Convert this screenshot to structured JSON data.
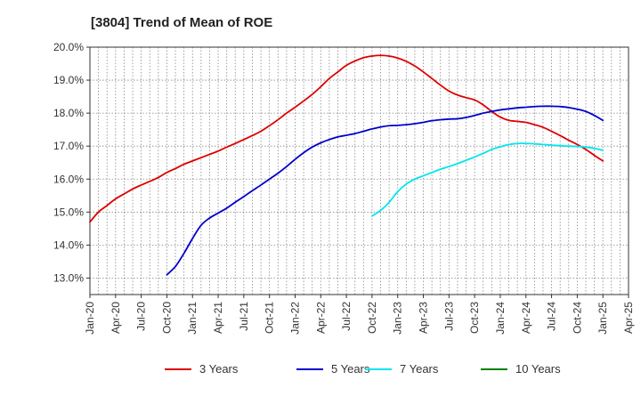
{
  "chart_data": {
    "type": "line",
    "title": "[3804]  Trend of Mean of ROE",
    "xlabel": "",
    "ylabel": "",
    "x_ticks": [
      "Jan-20",
      "Apr-20",
      "Jul-20",
      "Oct-20",
      "Jan-21",
      "Apr-21",
      "Jul-21",
      "Oct-21",
      "Jan-22",
      "Apr-22",
      "Jul-22",
      "Oct-22",
      "Jan-23",
      "Apr-23",
      "Jul-23",
      "Oct-23",
      "Jan-24",
      "Apr-24",
      "Jul-24",
      "Oct-24",
      "Jan-25",
      "Apr-25"
    ],
    "xlim": [
      "Jan-20",
      "Apr-25"
    ],
    "ylim": [
      12.5,
      20.0
    ],
    "y_ticks": [
      13.0,
      14.0,
      15.0,
      16.0,
      17.0,
      18.0,
      19.0,
      20.0
    ],
    "y_tick_labels": [
      "13.0%",
      "14.0%",
      "15.0%",
      "16.0%",
      "17.0%",
      "18.0%",
      "19.0%",
      "20.0%"
    ],
    "grid": true,
    "legend_position": "bottom",
    "series": [
      {
        "name": "3 Years",
        "color": "#dd0000",
        "points": [
          [
            "Jan-20",
            14.7
          ],
          [
            "Feb-20",
            15.0
          ],
          [
            "Mar-20",
            15.2
          ],
          [
            "Apr-20",
            15.4
          ],
          [
            "May-20",
            15.55
          ],
          [
            "Jun-20",
            15.7
          ],
          [
            "Jul-20",
            15.82
          ],
          [
            "Aug-20",
            15.93
          ],
          [
            "Sep-20",
            16.05
          ],
          [
            "Oct-20",
            16.2
          ],
          [
            "Nov-20",
            16.32
          ],
          [
            "Dec-20",
            16.45
          ],
          [
            "Jan-21",
            16.55
          ],
          [
            "Feb-21",
            16.65
          ],
          [
            "Mar-21",
            16.75
          ],
          [
            "Apr-21",
            16.85
          ],
          [
            "May-21",
            16.97
          ],
          [
            "Jun-21",
            17.08
          ],
          [
            "Jul-21",
            17.2
          ],
          [
            "Aug-21",
            17.32
          ],
          [
            "Sep-21",
            17.45
          ],
          [
            "Oct-21",
            17.62
          ],
          [
            "Nov-21",
            17.8
          ],
          [
            "Dec-21",
            18.0
          ],
          [
            "Jan-22",
            18.18
          ],
          [
            "Feb-22",
            18.37
          ],
          [
            "Mar-22",
            18.57
          ],
          [
            "Apr-22",
            18.8
          ],
          [
            "May-22",
            19.05
          ],
          [
            "Jun-22",
            19.25
          ],
          [
            "Jul-22",
            19.45
          ],
          [
            "Aug-22",
            19.58
          ],
          [
            "Sep-22",
            19.68
          ],
          [
            "Oct-22",
            19.73
          ],
          [
            "Nov-22",
            19.75
          ],
          [
            "Dec-22",
            19.73
          ],
          [
            "Jan-23",
            19.67
          ],
          [
            "Feb-23",
            19.57
          ],
          [
            "Mar-23",
            19.43
          ],
          [
            "Apr-23",
            19.25
          ],
          [
            "May-23",
            19.05
          ],
          [
            "Jun-23",
            18.85
          ],
          [
            "Jul-23",
            18.67
          ],
          [
            "Aug-23",
            18.55
          ],
          [
            "Sep-23",
            18.47
          ],
          [
            "Oct-23",
            18.4
          ],
          [
            "Nov-23",
            18.25
          ],
          [
            "Dec-23",
            18.05
          ],
          [
            "Jan-24",
            17.88
          ],
          [
            "Feb-24",
            17.78
          ],
          [
            "Mar-24",
            17.75
          ],
          [
            "Apr-24",
            17.72
          ],
          [
            "May-24",
            17.65
          ],
          [
            "Jun-24",
            17.57
          ],
          [
            "Jul-24",
            17.45
          ],
          [
            "Aug-24",
            17.32
          ],
          [
            "Sep-24",
            17.18
          ],
          [
            "Oct-24",
            17.05
          ],
          [
            "Nov-24",
            16.9
          ],
          [
            "Dec-24",
            16.72
          ],
          [
            "Jan-25",
            16.55
          ]
        ]
      },
      {
        "name": "5 Years",
        "color": "#0000cc",
        "points": [
          [
            "Oct-20",
            13.1
          ],
          [
            "Nov-20",
            13.35
          ],
          [
            "Dec-20",
            13.75
          ],
          [
            "Jan-21",
            14.2
          ],
          [
            "Feb-21",
            14.6
          ],
          [
            "Mar-21",
            14.82
          ],
          [
            "Apr-21",
            14.97
          ],
          [
            "May-21",
            15.12
          ],
          [
            "Jun-21",
            15.3
          ],
          [
            "Jul-21",
            15.47
          ],
          [
            "Aug-21",
            15.65
          ],
          [
            "Sep-21",
            15.82
          ],
          [
            "Oct-21",
            16.0
          ],
          [
            "Nov-21",
            16.18
          ],
          [
            "Dec-21",
            16.38
          ],
          [
            "Jan-22",
            16.6
          ],
          [
            "Feb-22",
            16.8
          ],
          [
            "Mar-22",
            16.97
          ],
          [
            "Apr-22",
            17.1
          ],
          [
            "May-22",
            17.2
          ],
          [
            "Jun-22",
            17.28
          ],
          [
            "Jul-22",
            17.33
          ],
          [
            "Aug-22",
            17.38
          ],
          [
            "Sep-22",
            17.45
          ],
          [
            "Oct-22",
            17.52
          ],
          [
            "Nov-22",
            17.58
          ],
          [
            "Dec-22",
            17.62
          ],
          [
            "Jan-23",
            17.63
          ],
          [
            "Feb-23",
            17.65
          ],
          [
            "Mar-23",
            17.68
          ],
          [
            "Apr-23",
            17.72
          ],
          [
            "May-23",
            17.77
          ],
          [
            "Jun-23",
            17.8
          ],
          [
            "Jul-23",
            17.82
          ],
          [
            "Aug-23",
            17.83
          ],
          [
            "Sep-23",
            17.87
          ],
          [
            "Oct-23",
            17.93
          ],
          [
            "Nov-23",
            18.0
          ],
          [
            "Dec-23",
            18.05
          ],
          [
            "Jan-24",
            18.1
          ],
          [
            "Feb-24",
            18.13
          ],
          [
            "Mar-24",
            18.16
          ],
          [
            "Apr-24",
            18.18
          ],
          [
            "May-24",
            18.2
          ],
          [
            "Jun-24",
            18.21
          ],
          [
            "Jul-24",
            18.21
          ],
          [
            "Aug-24",
            18.2
          ],
          [
            "Sep-24",
            18.17
          ],
          [
            "Oct-24",
            18.12
          ],
          [
            "Nov-24",
            18.05
          ],
          [
            "Dec-24",
            17.93
          ],
          [
            "Jan-25",
            17.78
          ]
        ]
      },
      {
        "name": "7 Years",
        "color": "#00e5ee",
        "points": [
          [
            "Oct-22",
            14.88
          ],
          [
            "Nov-22",
            15.05
          ],
          [
            "Dec-22",
            15.3
          ],
          [
            "Jan-23",
            15.62
          ],
          [
            "Feb-23",
            15.85
          ],
          [
            "Mar-23",
            16.0
          ],
          [
            "Apr-23",
            16.1
          ],
          [
            "May-23",
            16.2
          ],
          [
            "Jun-23",
            16.3
          ],
          [
            "Jul-23",
            16.38
          ],
          [
            "Aug-23",
            16.47
          ],
          [
            "Sep-23",
            16.57
          ],
          [
            "Oct-23",
            16.67
          ],
          [
            "Nov-23",
            16.78
          ],
          [
            "Dec-23",
            16.9
          ],
          [
            "Jan-24",
            16.98
          ],
          [
            "Feb-24",
            17.05
          ],
          [
            "Mar-24",
            17.08
          ],
          [
            "Apr-24",
            17.08
          ],
          [
            "May-24",
            17.07
          ],
          [
            "Jun-24",
            17.05
          ],
          [
            "Jul-24",
            17.03
          ],
          [
            "Aug-24",
            17.01
          ],
          [
            "Sep-24",
            17.0
          ],
          [
            "Oct-24",
            16.99
          ],
          [
            "Nov-24",
            16.97
          ],
          [
            "Dec-24",
            16.93
          ],
          [
            "Jan-25",
            16.87
          ]
        ]
      },
      {
        "name": "10 Years",
        "color": "#008000",
        "points": []
      }
    ]
  }
}
